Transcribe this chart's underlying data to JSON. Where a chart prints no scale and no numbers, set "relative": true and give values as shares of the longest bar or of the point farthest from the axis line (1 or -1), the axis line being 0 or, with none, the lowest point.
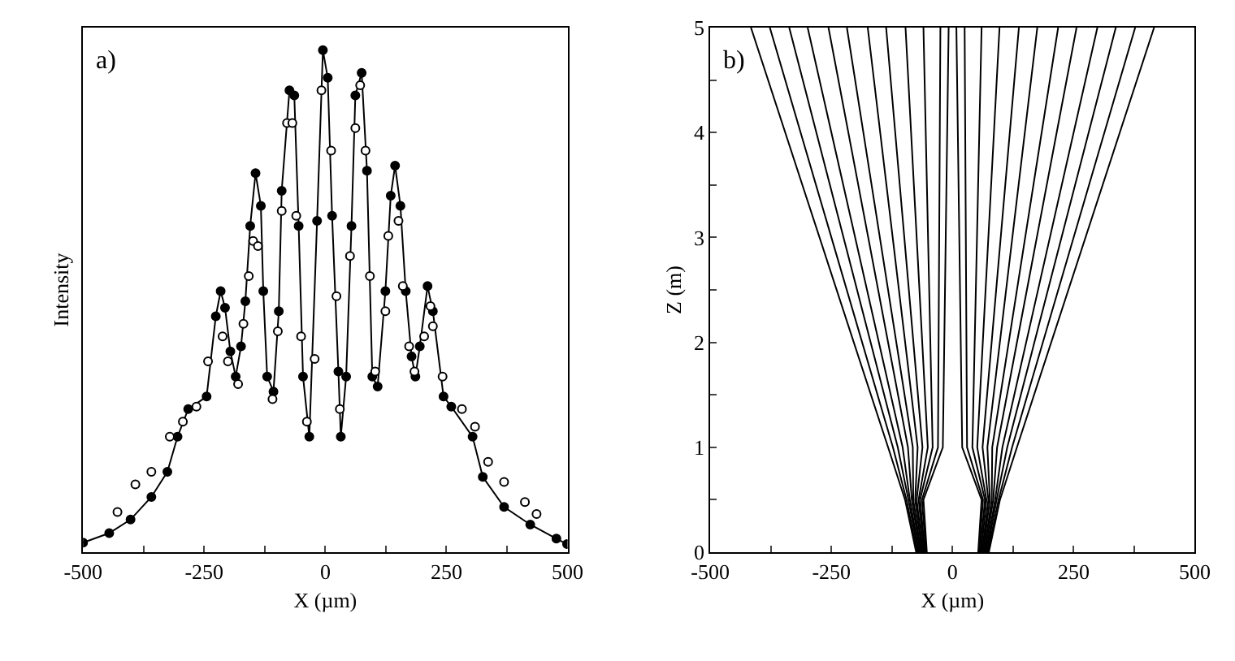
{
  "chart_data": [
    {
      "type": "line",
      "relative": true,
      "xlabel": "X (µm)",
      "ylabel": "Intensity",
      "annotations": [
        "a)"
      ],
      "xlim": [
        -500,
        500
      ],
      "xticks": [
        -500,
        {
          "value": -375,
          "label": null
        },
        -250,
        {
          "value": -125,
          "label": null
        },
        0,
        {
          "value": 125,
          "label": null
        },
        250,
        {
          "value": 375,
          "label": null
        },
        500
      ],
      "tick_labels": "x",
      "marker": "circle",
      "series": [
        {
          "type": "line",
          "color": "#000000",
          "x": [
            -500,
            -446,
            -402,
            -359,
            -326,
            -305,
            -283,
            -245,
            -226,
            -216,
            -207,
            -196,
            -185,
            -174,
            -165,
            -155,
            -144,
            -133,
            -128,
            -120,
            -107,
            -96,
            -90,
            -74,
            -64,
            -55,
            -46,
            -33,
            -17,
            -5,
            5,
            14,
            27,
            32,
            43,
            54,
            62,
            75,
            86,
            97,
            108,
            124,
            135,
            144,
            155,
            166,
            178,
            186,
            195,
            211,
            222,
            244,
            260,
            304,
            325,
            369,
            423,
            477,
            499
          ],
          "values": [
            0.019,
            0.038,
            0.065,
            0.11,
            0.16,
            0.23,
            0.285,
            0.31,
            0.47,
            0.52,
            0.487,
            0.4,
            0.35,
            0.41,
            0.5,
            0.65,
            0.755,
            0.69,
            0.52,
            0.35,
            0.32,
            0.48,
            0.72,
            0.92,
            0.91,
            0.65,
            0.35,
            0.23,
            0.66,
            1.0,
            0.945,
            0.67,
            0.36,
            0.23,
            0.35,
            0.65,
            0.91,
            0.955,
            0.76,
            0.35,
            0.33,
            0.52,
            0.71,
            0.77,
            0.69,
            0.52,
            0.39,
            0.35,
            0.41,
            0.53,
            0.48,
            0.31,
            0.29,
            0.23,
            0.15,
            0.09,
            0.055,
            0.027,
            0.016
          ]
        },
        {
          "type": "scatter",
          "color": "#ffffff",
          "x": [
            -429,
            -392,
            -359,
            -321,
            -294,
            -266,
            -242,
            -212,
            -201,
            -180,
            -169,
            -158,
            -149,
            -139,
            -109,
            -98,
            -90,
            -79,
            -68,
            -60,
            -50,
            -38,
            -22,
            -8,
            12,
            23,
            30,
            51,
            62,
            72,
            83,
            92,
            103,
            124,
            130,
            151,
            160,
            173,
            184,
            204,
            217,
            222,
            242,
            282,
            309,
            336,
            369,
            412,
            436
          ],
          "values": [
            0.08,
            0.135,
            0.16,
            0.23,
            0.26,
            0.29,
            0.38,
            0.43,
            0.38,
            0.335,
            0.455,
            0.55,
            0.62,
            0.61,
            0.305,
            0.44,
            0.68,
            0.855,
            0.855,
            0.67,
            0.43,
            0.26,
            0.385,
            0.92,
            0.8,
            0.51,
            0.285,
            0.59,
            0.845,
            0.93,
            0.8,
            0.55,
            0.36,
            0.48,
            0.63,
            0.66,
            0.53,
            0.41,
            0.36,
            0.43,
            0.49,
            0.45,
            0.35,
            0.285,
            0.25,
            0.18,
            0.14,
            0.1,
            0.076
          ]
        }
      ]
    },
    {
      "type": "line",
      "xlabel": "X (µm)",
      "ylabel": "Z (m)",
      "annotations": [
        "b)"
      ],
      "xlim": [
        -500,
        500
      ],
      "xticks": [
        -500,
        {
          "value": -375,
          "label": null
        },
        -250,
        {
          "value": -125,
          "label": null
        },
        0,
        {
          "value": 125,
          "label": null
        },
        250,
        {
          "value": 375,
          "label": null
        },
        500
      ],
      "ylim": [
        0,
        5
      ],
      "yticks": [
        0,
        {
          "value": 0.5,
          "label": null
        },
        1,
        {
          "value": 1.5,
          "label": null
        },
        2,
        {
          "value": 2.5,
          "label": null
        },
        3,
        {
          "value": 3.5,
          "label": null
        },
        4,
        {
          "value": 4.5,
          "label": null
        },
        5
      ],
      "series": [
        {
          "color": "#000000",
          "x": [
            -75,
            -98,
            -133,
            -416
          ],
          "values": [
            0,
            0.5,
            1,
            5
          ]
        },
        {
          "color": "#000000",
          "x": [
            -73,
            -95,
            -123,
            -377
          ],
          "values": [
            0,
            0.5,
            1,
            5
          ]
        },
        {
          "color": "#000000",
          "x": [
            -71,
            -91,
            -113,
            -337
          ],
          "values": [
            0,
            0.5,
            1,
            5
          ]
        },
        {
          "color": "#000000",
          "x": [
            -69,
            -88,
            -103,
            -299
          ],
          "values": [
            0,
            0.5,
            1,
            5
          ]
        },
        {
          "color": "#000000",
          "x": [
            -67,
            -84,
            -92,
            -256
          ],
          "values": [
            0,
            0.5,
            1,
            5
          ]
        },
        {
          "color": "#000000",
          "x": [
            -65,
            -81,
            -82,
            -218
          ],
          "values": [
            0,
            0.5,
            1,
            5
          ]
        },
        {
          "color": "#000000",
          "x": [
            -63,
            -77,
            -72,
            -175
          ],
          "values": [
            0,
            0.5,
            1,
            5
          ]
        },
        {
          "color": "#000000",
          "x": [
            -61,
            -74,
            -62,
            -137
          ],
          "values": [
            0,
            0.5,
            1,
            5
          ]
        },
        {
          "color": "#000000",
          "x": [
            -59,
            -70,
            -51,
            -97
          ],
          "values": [
            0,
            0.5,
            1,
            5
          ]
        },
        {
          "color": "#000000",
          "x": [
            -57,
            -67,
            -41,
            -60
          ],
          "values": [
            0,
            0.5,
            1,
            5
          ]
        },
        {
          "color": "#000000",
          "x": [
            -55,
            -63,
            -30,
            -25
          ],
          "values": [
            0,
            0.5,
            1,
            5
          ]
        },
        {
          "color": "#000000",
          "x": [
            -53,
            -60,
            -20,
            -8
          ],
          "values": [
            0,
            0.5,
            1,
            5
          ]
        },
        {
          "color": "#000000",
          "x": [
            75,
            98,
            133,
            416
          ],
          "values": [
            0,
            0.5,
            1,
            5
          ]
        },
        {
          "color": "#000000",
          "x": [
            73,
            95,
            123,
            377
          ],
          "values": [
            0,
            0.5,
            1,
            5
          ]
        },
        {
          "color": "#000000",
          "x": [
            71,
            91,
            113,
            337
          ],
          "values": [
            0,
            0.5,
            1,
            5
          ]
        },
        {
          "color": "#000000",
          "x": [
            69,
            88,
            103,
            299
          ],
          "values": [
            0,
            0.5,
            1,
            5
          ]
        },
        {
          "color": "#000000",
          "x": [
            67,
            84,
            92,
            256
          ],
          "values": [
            0,
            0.5,
            1,
            5
          ]
        },
        {
          "color": "#000000",
          "x": [
            65,
            81,
            82,
            218
          ],
          "values": [
            0,
            0.5,
            1,
            5
          ]
        },
        {
          "color": "#000000",
          "x": [
            63,
            77,
            72,
            175
          ],
          "values": [
            0,
            0.5,
            1,
            5
          ]
        },
        {
          "color": "#000000",
          "x": [
            61,
            74,
            62,
            137
          ],
          "values": [
            0,
            0.5,
            1,
            5
          ]
        },
        {
          "color": "#000000",
          "x": [
            59,
            70,
            51,
            97
          ],
          "values": [
            0,
            0.5,
            1,
            5
          ]
        },
        {
          "color": "#000000",
          "x": [
            57,
            67,
            41,
            60
          ],
          "values": [
            0,
            0.5,
            1,
            5
          ]
        },
        {
          "color": "#000000",
          "x": [
            55,
            63,
            30,
            25
          ],
          "values": [
            0,
            0.5,
            1,
            5
          ]
        },
        {
          "color": "#000000",
          "x": [
            53,
            60,
            20,
            8
          ],
          "values": [
            0,
            0.5,
            1,
            5
          ]
        }
      ]
    }
  ]
}
